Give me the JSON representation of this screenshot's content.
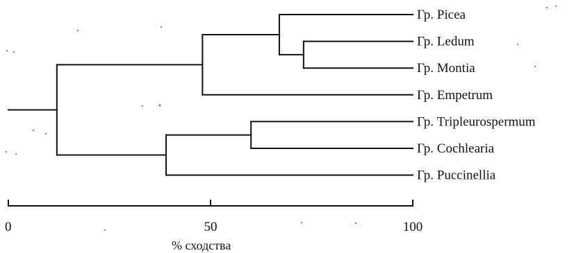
{
  "chart_data": {
    "type": "dendrogram",
    "axis": {
      "xlabel": "% сходства",
      "range": [
        0,
        100
      ],
      "ticks": [
        {
          "value": 0,
          "label": "0"
        },
        {
          "value": 50,
          "label": "50"
        },
        {
          "value": 100,
          "label": "100"
        }
      ]
    },
    "leaves": [
      {
        "id": "picea",
        "label": "Гр. Picea"
      },
      {
        "id": "ledum",
        "label": "Гр. Ledum"
      },
      {
        "id": "montia",
        "label": "Гр. Montia"
      },
      {
        "id": "empetrum",
        "label": "Гр. Empetrum"
      },
      {
        "id": "tripleurospermum",
        "label": "Гр. Tripleurospermum"
      },
      {
        "id": "cochlearia",
        "label": "Гр. Cochlearia"
      },
      {
        "id": "puccinellia",
        "label": "Гр. Puccinellia"
      }
    ],
    "merges": [
      {
        "id": "m_ledum_montia",
        "children": [
          "ledum",
          "montia"
        ],
        "similarity": 73
      },
      {
        "id": "m_picea_lm",
        "children": [
          "picea",
          "m_ledum_montia"
        ],
        "similarity": 67
      },
      {
        "id": "m_trip_coch",
        "children": [
          "tripleurospermum",
          "cochlearia"
        ],
        "similarity": 60
      },
      {
        "id": "m_upper",
        "children": [
          "m_picea_lm",
          "empetrum"
        ],
        "similarity": 48
      },
      {
        "id": "m_lower",
        "children": [
          "m_trip_coch",
          "puccinellia"
        ],
        "similarity": 39
      },
      {
        "id": "m_root",
        "children": [
          "m_upper",
          "m_lower"
        ],
        "similarity": 12
      }
    ],
    "root_stub_from": 0
  }
}
